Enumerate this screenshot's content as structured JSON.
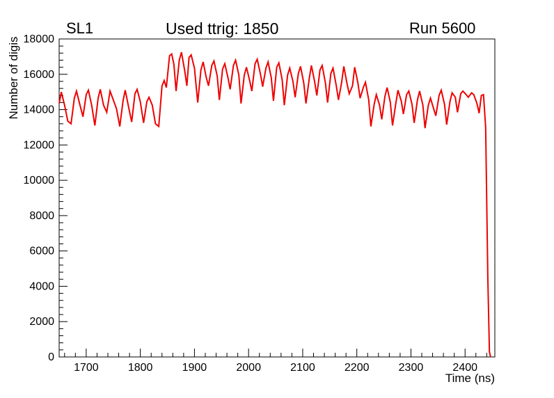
{
  "header": {
    "left": "SL1",
    "center": "Used ttrig: 1850",
    "right": "Run 5600"
  },
  "chart_data": {
    "type": "line",
    "title": "Used ttrig: 1850",
    "subtitle_left": "SL1",
    "subtitle_right": "Run 5600",
    "xlabel": "Time (ns)",
    "ylabel": "Number of digis",
    "xlim": [
      1650,
      2455
    ],
    "ylim": [
      0,
      18000
    ],
    "x_ticks": [
      1700,
      1800,
      1900,
      2000,
      2100,
      2200,
      2300,
      2400
    ],
    "y_ticks": [
      0,
      2000,
      4000,
      6000,
      8000,
      10000,
      12000,
      14000,
      16000,
      18000
    ],
    "x_major_step": 100,
    "x_minor_step": 20,
    "y_major_step": 2000,
    "y_minor_step": 400,
    "grid": false,
    "legend": null,
    "line_color": "#ee0000",
    "frame_color": "#000000",
    "series": [
      {
        "name": "digis",
        "points": [
          [
            1650,
            14350
          ],
          [
            1654,
            15000
          ],
          [
            1660,
            14250
          ],
          [
            1666,
            13350
          ],
          [
            1672,
            13200
          ],
          [
            1678,
            14650
          ],
          [
            1682,
            15050
          ],
          [
            1688,
            14300
          ],
          [
            1694,
            13600
          ],
          [
            1700,
            14850
          ],
          [
            1704,
            15100
          ],
          [
            1710,
            14250
          ],
          [
            1716,
            13100
          ],
          [
            1722,
            14650
          ],
          [
            1726,
            15150
          ],
          [
            1732,
            14250
          ],
          [
            1738,
            13850
          ],
          [
            1744,
            15050
          ],
          [
            1750,
            14550
          ],
          [
            1756,
            14050
          ],
          [
            1762,
            13050
          ],
          [
            1768,
            14500
          ],
          [
            1772,
            15100
          ],
          [
            1778,
            14200
          ],
          [
            1784,
            13300
          ],
          [
            1790,
            14900
          ],
          [
            1794,
            15150
          ],
          [
            1800,
            14450
          ],
          [
            1806,
            13250
          ],
          [
            1812,
            14450
          ],
          [
            1816,
            14700
          ],
          [
            1822,
            14250
          ],
          [
            1828,
            13200
          ],
          [
            1834,
            13050
          ],
          [
            1840,
            15350
          ],
          [
            1844,
            15650
          ],
          [
            1848,
            15250
          ],
          [
            1854,
            17050
          ],
          [
            1858,
            17150
          ],
          [
            1862,
            16550
          ],
          [
            1866,
            15050
          ],
          [
            1872,
            16800
          ],
          [
            1876,
            17250
          ],
          [
            1882,
            16200
          ],
          [
            1886,
            15350
          ],
          [
            1890,
            16950
          ],
          [
            1894,
            17100
          ],
          [
            1900,
            16350
          ],
          [
            1906,
            14400
          ],
          [
            1912,
            16250
          ],
          [
            1916,
            16700
          ],
          [
            1922,
            15800
          ],
          [
            1926,
            15350
          ],
          [
            1932,
            16500
          ],
          [
            1936,
            16750
          ],
          [
            1942,
            15900
          ],
          [
            1946,
            14550
          ],
          [
            1952,
            16300
          ],
          [
            1956,
            16600
          ],
          [
            1962,
            15800
          ],
          [
            1966,
            15150
          ],
          [
            1972,
            16500
          ],
          [
            1976,
            16800
          ],
          [
            1982,
            15950
          ],
          [
            1986,
            14350
          ],
          [
            1992,
            15950
          ],
          [
            1996,
            16400
          ],
          [
            2002,
            15650
          ],
          [
            2006,
            15050
          ],
          [
            2012,
            16600
          ],
          [
            2016,
            16850
          ],
          [
            2022,
            16000
          ],
          [
            2026,
            15300
          ],
          [
            2032,
            16350
          ],
          [
            2036,
            16700
          ],
          [
            2042,
            15800
          ],
          [
            2046,
            14500
          ],
          [
            2052,
            16400
          ],
          [
            2056,
            16650
          ],
          [
            2062,
            15700
          ],
          [
            2066,
            14250
          ],
          [
            2072,
            15950
          ],
          [
            2076,
            16350
          ],
          [
            2082,
            15600
          ],
          [
            2086,
            14700
          ],
          [
            2092,
            16050
          ],
          [
            2096,
            16450
          ],
          [
            2102,
            15500
          ],
          [
            2106,
            14350
          ],
          [
            2112,
            15750
          ],
          [
            2116,
            16500
          ],
          [
            2122,
            15600
          ],
          [
            2126,
            14800
          ],
          [
            2132,
            16250
          ],
          [
            2136,
            16500
          ],
          [
            2142,
            15500
          ],
          [
            2146,
            14400
          ],
          [
            2152,
            16050
          ],
          [
            2156,
            16350
          ],
          [
            2162,
            15350
          ],
          [
            2166,
            14550
          ],
          [
            2172,
            15550
          ],
          [
            2176,
            16450
          ],
          [
            2182,
            15450
          ],
          [
            2186,
            14900
          ],
          [
            2192,
            15350
          ],
          [
            2196,
            16400
          ],
          [
            2202,
            15500
          ],
          [
            2206,
            14650
          ],
          [
            2212,
            15250
          ],
          [
            2216,
            15550
          ],
          [
            2222,
            14550
          ],
          [
            2226,
            13050
          ],
          [
            2232,
            14300
          ],
          [
            2236,
            14850
          ],
          [
            2242,
            14250
          ],
          [
            2246,
            13450
          ],
          [
            2252,
            14750
          ],
          [
            2256,
            15250
          ],
          [
            2262,
            14400
          ],
          [
            2266,
            13100
          ],
          [
            2272,
            14350
          ],
          [
            2276,
            15100
          ],
          [
            2282,
            14500
          ],
          [
            2286,
            13750
          ],
          [
            2292,
            14850
          ],
          [
            2296,
            15050
          ],
          [
            2302,
            14300
          ],
          [
            2306,
            13250
          ],
          [
            2312,
            14550
          ],
          [
            2316,
            15050
          ],
          [
            2322,
            14250
          ],
          [
            2326,
            12950
          ],
          [
            2332,
            14250
          ],
          [
            2336,
            14650
          ],
          [
            2342,
            14050
          ],
          [
            2346,
            13650
          ],
          [
            2352,
            14800
          ],
          [
            2356,
            15100
          ],
          [
            2362,
            14300
          ],
          [
            2366,
            13150
          ],
          [
            2372,
            14450
          ],
          [
            2376,
            14950
          ],
          [
            2382,
            14700
          ],
          [
            2386,
            13850
          ],
          [
            2392,
            14900
          ],
          [
            2396,
            15050
          ],
          [
            2402,
            14850
          ],
          [
            2406,
            14700
          ],
          [
            2412,
            14950
          ],
          [
            2416,
            14850
          ],
          [
            2422,
            14350
          ],
          [
            2426,
            13800
          ],
          [
            2430,
            14800
          ],
          [
            2434,
            14850
          ],
          [
            2438,
            13000
          ],
          [
            2442,
            4500
          ],
          [
            2445,
            300
          ],
          [
            2447,
            0
          ]
        ]
      }
    ]
  }
}
